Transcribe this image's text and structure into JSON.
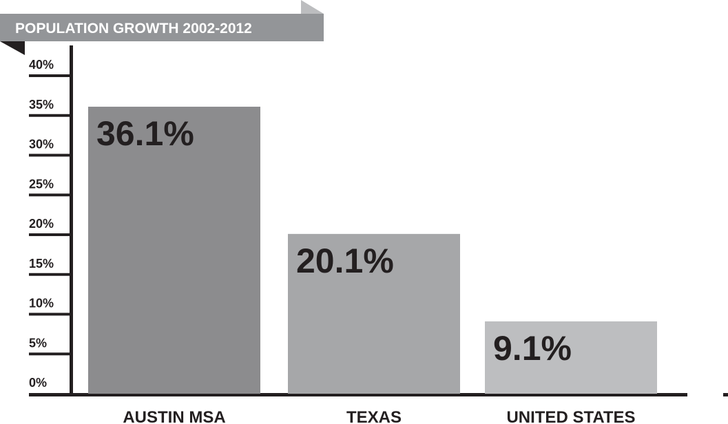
{
  "chart_data": {
    "type": "bar",
    "title": "POPULATION GROWTH 2002-2012",
    "categories": [
      "AUSTIN MSA",
      "TEXAS",
      "UNITED STATES"
    ],
    "values": [
      36.1,
      20.1,
      9.1
    ],
    "value_labels": [
      "36.1%",
      "20.1%",
      "9.1%"
    ],
    "y_ticks": [
      0,
      5,
      10,
      15,
      20,
      25,
      30,
      35,
      40
    ],
    "y_tick_labels": [
      "0%",
      "5%",
      "10%",
      "15%",
      "20%",
      "25%",
      "30%",
      "35%",
      "40%"
    ],
    "ylim": [
      0,
      40
    ],
    "grid": false,
    "xlabel": "",
    "ylabel": ""
  },
  "colors": {
    "bars": [
      "#8c8c8e",
      "#a6a7a9",
      "#bdbec0"
    ],
    "axis": "#231f20",
    "ribbon": "#939598",
    "ribbon_fold": "#bcbdbf",
    "text": "#231f20"
  }
}
